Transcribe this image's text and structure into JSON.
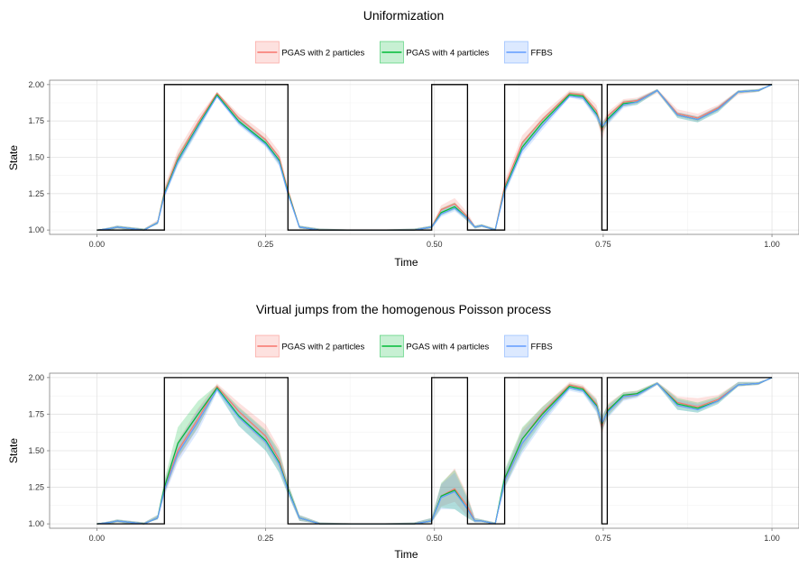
{
  "chart_data": [
    {
      "type": "line",
      "title": "Uniformization",
      "xlabel": "Time",
      "ylabel": "State",
      "xlim": [
        -0.07,
        1.04
      ],
      "ylim": [
        0.97,
        2.03
      ],
      "xticks": [
        "0.00",
        "0.25",
        "0.50",
        "0.75",
        "1.00"
      ],
      "yticks": [
        "1.00",
        "1.25",
        "1.50",
        "1.75",
        "2.00"
      ],
      "grid": true,
      "legend_position": "top",
      "colors": {
        "PGAS with 2 particles": "#F8766D",
        "PGAS with 4 particles": "#00BA38",
        "FFBS": "#619CFF",
        "true_state": "#000000"
      },
      "true_state": {
        "x": [
          0.0,
          0.1,
          0.1,
          0.283,
          0.283,
          0.496,
          0.496,
          0.549,
          0.549,
          0.604,
          0.604,
          0.748,
          0.748,
          0.756,
          0.756,
          1.0
        ],
        "y": [
          1,
          1,
          2,
          2,
          1,
          1,
          2,
          2,
          1,
          1,
          2,
          2,
          1,
          1,
          2,
          2
        ]
      },
      "x": [
        0.0,
        0.02,
        0.03,
        0.05,
        0.07,
        0.09,
        0.1,
        0.12,
        0.15,
        0.178,
        0.21,
        0.25,
        0.27,
        0.283,
        0.3,
        0.33,
        0.4,
        0.47,
        0.496,
        0.51,
        0.53,
        0.549,
        0.56,
        0.57,
        0.59,
        0.604,
        0.63,
        0.66,
        0.7,
        0.72,
        0.74,
        0.748,
        0.756,
        0.78,
        0.8,
        0.83,
        0.86,
        0.89,
        0.92,
        0.95,
        0.98,
        1.0
      ],
      "series": [
        {
          "name": "PGAS with 2 particles",
          "values": [
            1.0,
            1.01,
            1.02,
            1.01,
            1.0,
            1.05,
            1.26,
            1.5,
            1.74,
            1.94,
            1.77,
            1.62,
            1.5,
            1.27,
            1.02,
            1.0,
            1.0,
            1.0,
            1.02,
            1.14,
            1.18,
            1.09,
            1.02,
            1.03,
            1.0,
            1.3,
            1.6,
            1.76,
            1.94,
            1.93,
            1.82,
            1.68,
            1.78,
            1.88,
            1.89,
            1.96,
            1.8,
            1.77,
            1.84,
            1.95,
            1.96,
            2.0
          ],
          "lower": [
            1.0,
            1.0,
            1.01,
            1.0,
            1.0,
            1.04,
            1.23,
            1.46,
            1.7,
            1.92,
            1.74,
            1.59,
            1.46,
            1.24,
            1.01,
            1.0,
            1.0,
            1.0,
            1.01,
            1.11,
            1.15,
            1.06,
            1.01,
            1.02,
            1.0,
            1.26,
            1.55,
            1.72,
            1.92,
            1.9,
            1.78,
            1.62,
            1.74,
            1.85,
            1.87,
            1.94,
            1.78,
            1.75,
            1.82,
            1.93,
            1.95,
            2.0
          ],
          "upper": [
            1.0,
            1.02,
            1.03,
            1.02,
            1.01,
            1.07,
            1.3,
            1.55,
            1.78,
            1.95,
            1.8,
            1.66,
            1.54,
            1.3,
            1.03,
            1.01,
            1.0,
            1.01,
            1.03,
            1.17,
            1.22,
            1.12,
            1.03,
            1.04,
            1.01,
            1.34,
            1.65,
            1.8,
            1.96,
            1.95,
            1.86,
            1.73,
            1.81,
            1.9,
            1.91,
            1.97,
            1.83,
            1.8,
            1.86,
            1.96,
            1.97,
            2.0
          ]
        },
        {
          "name": "PGAS with 4 particles",
          "values": [
            1.0,
            1.01,
            1.02,
            1.01,
            1.0,
            1.05,
            1.25,
            1.48,
            1.72,
            1.93,
            1.75,
            1.6,
            1.48,
            1.26,
            1.02,
            1.0,
            1.0,
            1.0,
            1.02,
            1.12,
            1.16,
            1.08,
            1.02,
            1.03,
            1.0,
            1.28,
            1.57,
            1.74,
            1.93,
            1.92,
            1.8,
            1.7,
            1.76,
            1.87,
            1.88,
            1.96,
            1.79,
            1.76,
            1.83,
            1.95,
            1.96,
            2.0
          ],
          "lower": [
            1.0,
            1.0,
            1.01,
            1.0,
            1.0,
            1.04,
            1.23,
            1.45,
            1.69,
            1.92,
            1.73,
            1.58,
            1.45,
            1.24,
            1.01,
            1.0,
            1.0,
            1.0,
            1.01,
            1.1,
            1.14,
            1.06,
            1.01,
            1.02,
            1.0,
            1.25,
            1.54,
            1.71,
            1.92,
            1.9,
            1.77,
            1.66,
            1.73,
            1.85,
            1.86,
            1.95,
            1.77,
            1.74,
            1.81,
            1.94,
            1.95,
            2.0
          ],
          "upper": [
            1.0,
            1.02,
            1.03,
            1.02,
            1.01,
            1.06,
            1.28,
            1.52,
            1.75,
            1.95,
            1.78,
            1.63,
            1.51,
            1.28,
            1.03,
            1.01,
            1.0,
            1.01,
            1.03,
            1.15,
            1.19,
            1.1,
            1.03,
            1.04,
            1.01,
            1.31,
            1.61,
            1.77,
            1.95,
            1.94,
            1.83,
            1.73,
            1.79,
            1.89,
            1.9,
            1.97,
            1.81,
            1.78,
            1.85,
            1.96,
            1.97,
            2.0
          ]
        },
        {
          "name": "FFBS",
          "values": [
            1.0,
            1.01,
            1.02,
            1.01,
            1.0,
            1.05,
            1.24,
            1.47,
            1.71,
            1.92,
            1.74,
            1.59,
            1.47,
            1.25,
            1.02,
            1.0,
            1.0,
            1.0,
            1.02,
            1.11,
            1.15,
            1.08,
            1.02,
            1.03,
            1.0,
            1.27,
            1.55,
            1.72,
            1.92,
            1.91,
            1.79,
            1.71,
            1.75,
            1.86,
            1.88,
            1.96,
            1.79,
            1.76,
            1.83,
            1.95,
            1.96,
            2.0
          ],
          "lower": [
            1.0,
            1.0,
            1.01,
            1.0,
            1.0,
            1.04,
            1.22,
            1.44,
            1.68,
            1.91,
            1.72,
            1.57,
            1.44,
            1.23,
            1.01,
            1.0,
            1.0,
            1.0,
            1.01,
            1.09,
            1.13,
            1.06,
            1.01,
            1.02,
            1.0,
            1.24,
            1.52,
            1.69,
            1.91,
            1.89,
            1.76,
            1.68,
            1.72,
            1.84,
            1.86,
            1.95,
            1.77,
            1.74,
            1.81,
            1.94,
            1.95,
            2.0
          ],
          "upper": [
            1.0,
            1.02,
            1.03,
            1.02,
            1.01,
            1.06,
            1.27,
            1.51,
            1.74,
            1.94,
            1.77,
            1.62,
            1.5,
            1.27,
            1.03,
            1.01,
            1.0,
            1.01,
            1.03,
            1.14,
            1.18,
            1.1,
            1.03,
            1.04,
            1.01,
            1.3,
            1.59,
            1.75,
            1.94,
            1.93,
            1.82,
            1.74,
            1.78,
            1.88,
            1.9,
            1.97,
            1.81,
            1.78,
            1.85,
            1.96,
            1.97,
            2.0
          ]
        }
      ]
    },
    {
      "type": "line",
      "title": "Virtual jumps from the homogenous Poisson process",
      "xlabel": "Time",
      "ylabel": "State",
      "xlim": [
        -0.07,
        1.04
      ],
      "ylim": [
        0.97,
        2.03
      ],
      "xticks": [
        "0.00",
        "0.25",
        "0.50",
        "0.75",
        "1.00"
      ],
      "yticks": [
        "1.00",
        "1.25",
        "1.50",
        "1.75",
        "2.00"
      ],
      "grid": true,
      "legend_position": "top",
      "colors": {
        "PGAS with 2 particles": "#F8766D",
        "PGAS with 4 particles": "#00BA38",
        "FFBS": "#619CFF",
        "true_state": "#000000"
      },
      "true_state": {
        "x": [
          0.0,
          0.1,
          0.1,
          0.283,
          0.283,
          0.496,
          0.496,
          0.549,
          0.549,
          0.604,
          0.604,
          0.748,
          0.748,
          0.756,
          0.756,
          1.0
        ],
        "y": [
          1,
          1,
          2,
          2,
          1,
          1,
          2,
          2,
          1,
          1,
          2,
          2,
          1,
          1,
          2,
          2
        ]
      },
      "x": [
        0.0,
        0.02,
        0.03,
        0.05,
        0.07,
        0.09,
        0.1,
        0.12,
        0.15,
        0.178,
        0.21,
        0.25,
        0.27,
        0.283,
        0.3,
        0.33,
        0.4,
        0.47,
        0.496,
        0.51,
        0.53,
        0.549,
        0.56,
        0.57,
        0.59,
        0.604,
        0.63,
        0.66,
        0.7,
        0.72,
        0.74,
        0.748,
        0.756,
        0.78,
        0.8,
        0.83,
        0.86,
        0.89,
        0.92,
        0.95,
        0.98,
        1.0
      ],
      "series": [
        {
          "name": "PGAS with 2 particles",
          "values": [
            1.0,
            1.01,
            1.02,
            1.01,
            1.0,
            1.04,
            1.24,
            1.5,
            1.72,
            1.94,
            1.77,
            1.6,
            1.44,
            1.24,
            1.04,
            1.0,
            1.0,
            1.0,
            1.02,
            1.19,
            1.24,
            1.12,
            1.02,
            1.02,
            1.0,
            1.3,
            1.58,
            1.76,
            1.95,
            1.93,
            1.82,
            1.66,
            1.78,
            1.87,
            1.89,
            1.96,
            1.83,
            1.8,
            1.85,
            1.95,
            1.96,
            2.0
          ],
          "lower": [
            1.0,
            1.0,
            1.01,
            1.0,
            1.0,
            1.03,
            1.2,
            1.44,
            1.66,
            1.92,
            1.72,
            1.54,
            1.38,
            1.21,
            1.02,
            1.0,
            1.0,
            1.0,
            1.01,
            1.12,
            1.15,
            1.05,
            1.01,
            1.01,
            1.0,
            1.25,
            1.52,
            1.72,
            1.93,
            1.91,
            1.78,
            1.61,
            1.74,
            1.85,
            1.87,
            1.95,
            1.8,
            1.78,
            1.83,
            1.94,
            1.95,
            2.0
          ],
          "upper": [
            1.0,
            1.02,
            1.03,
            1.02,
            1.01,
            1.06,
            1.29,
            1.57,
            1.79,
            1.96,
            1.83,
            1.68,
            1.52,
            1.28,
            1.06,
            1.01,
            1.0,
            1.01,
            1.04,
            1.27,
            1.38,
            1.2,
            1.04,
            1.03,
            1.01,
            1.35,
            1.65,
            1.8,
            1.97,
            1.95,
            1.86,
            1.72,
            1.82,
            1.9,
            1.91,
            1.97,
            1.87,
            1.86,
            1.88,
            1.97,
            1.97,
            2.0
          ]
        },
        {
          "name": "PGAS with 4 particles",
          "values": [
            1.0,
            1.01,
            1.02,
            1.01,
            1.0,
            1.04,
            1.25,
            1.55,
            1.75,
            1.93,
            1.74,
            1.57,
            1.42,
            1.24,
            1.04,
            1.0,
            1.0,
            1.0,
            1.02,
            1.19,
            1.23,
            1.1,
            1.02,
            1.02,
            1.0,
            1.31,
            1.58,
            1.75,
            1.94,
            1.92,
            1.81,
            1.68,
            1.77,
            1.88,
            1.89,
            1.96,
            1.82,
            1.79,
            1.84,
            1.95,
            1.96,
            2.0
          ],
          "lower": [
            1.0,
            1.0,
            1.01,
            1.0,
            1.0,
            1.03,
            1.21,
            1.45,
            1.66,
            1.91,
            1.67,
            1.5,
            1.35,
            1.2,
            1.02,
            1.0,
            1.0,
            1.0,
            1.01,
            1.11,
            1.1,
            1.04,
            1.01,
            1.01,
            1.0,
            1.25,
            1.5,
            1.7,
            1.92,
            1.9,
            1.77,
            1.63,
            1.73,
            1.85,
            1.87,
            1.95,
            1.78,
            1.76,
            1.82,
            1.94,
            1.95,
            2.0
          ],
          "upper": [
            1.0,
            1.02,
            1.03,
            1.02,
            1.01,
            1.06,
            1.3,
            1.66,
            1.84,
            1.95,
            1.8,
            1.64,
            1.5,
            1.28,
            1.06,
            1.01,
            1.0,
            1.01,
            1.04,
            1.28,
            1.37,
            1.18,
            1.04,
            1.03,
            1.01,
            1.37,
            1.66,
            1.8,
            1.96,
            1.94,
            1.85,
            1.73,
            1.81,
            1.9,
            1.91,
            1.97,
            1.86,
            1.83,
            1.87,
            1.97,
            1.97,
            2.0
          ]
        },
        {
          "name": "FFBS",
          "values": [
            1.0,
            1.01,
            1.02,
            1.01,
            1.0,
            1.04,
            1.23,
            1.48,
            1.7,
            1.92,
            1.73,
            1.56,
            1.41,
            1.23,
            1.04,
            1.0,
            1.0,
            1.0,
            1.02,
            1.18,
            1.22,
            1.1,
            1.02,
            1.02,
            1.0,
            1.29,
            1.55,
            1.73,
            1.93,
            1.91,
            1.8,
            1.69,
            1.76,
            1.87,
            1.88,
            1.96,
            1.81,
            1.78,
            1.84,
            1.95,
            1.96,
            2.0
          ],
          "lower": [
            1.0,
            1.0,
            1.01,
            1.0,
            1.0,
            1.03,
            1.19,
            1.42,
            1.63,
            1.9,
            1.67,
            1.5,
            1.35,
            1.2,
            1.02,
            1.0,
            1.0,
            1.0,
            1.01,
            1.1,
            1.1,
            1.04,
            1.01,
            1.01,
            1.0,
            1.24,
            1.48,
            1.68,
            1.91,
            1.89,
            1.76,
            1.64,
            1.72,
            1.84,
            1.86,
            1.95,
            1.78,
            1.76,
            1.82,
            1.94,
            1.95,
            2.0
          ],
          "upper": [
            1.0,
            1.02,
            1.03,
            1.02,
            1.01,
            1.06,
            1.28,
            1.56,
            1.78,
            1.94,
            1.79,
            1.63,
            1.48,
            1.27,
            1.06,
            1.01,
            1.0,
            1.01,
            1.04,
            1.27,
            1.35,
            1.17,
            1.04,
            1.03,
            1.01,
            1.35,
            1.63,
            1.78,
            1.95,
            1.93,
            1.84,
            1.74,
            1.8,
            1.89,
            1.9,
            1.97,
            1.85,
            1.82,
            1.86,
            1.97,
            1.97,
            2.0
          ]
        }
      ]
    }
  ]
}
